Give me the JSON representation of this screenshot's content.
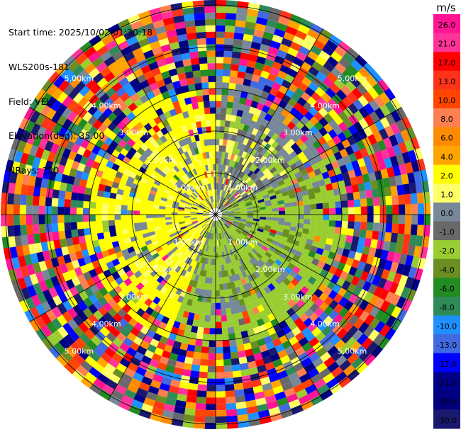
{
  "header": {
    "start_time": "Start time: 2025/10/02 01:30:18",
    "instrument": "WLS200s-181",
    "field": "Field: VEL",
    "elevation": "Elevation(deg): 35.00",
    "nrays": "NRays: 120"
  },
  "colorbar": {
    "unit": "m/s",
    "ticks": [
      "26.0",
      "21.0",
      "17.0",
      "13.0",
      "10.0",
      "8.0",
      "6.0",
      "4.0",
      "2.0",
      "1.0",
      "0.0",
      "-1.0",
      "-2.0",
      "-4.0",
      "-6.0",
      "-8.0",
      "-10.0",
      "-13.0",
      "-17.0",
      "-21.0",
      "-26.0",
      "-30.0"
    ],
    "colors": [
      "#ff1493",
      "#ff3399",
      "#ff0000",
      "#ff3319",
      "#ff4500",
      "#ff7f50",
      "#ff8c00",
      "#ffa500",
      "#ffff00",
      "#ffff66",
      "#778899",
      "#696969",
      "#9acd32",
      "#6b8e23",
      "#228b22",
      "#2e8b57",
      "#1e90ff",
      "#4169e1",
      "#0000ff",
      "#00008b",
      "#000080",
      "#191970"
    ]
  },
  "range_rings": {
    "labels": [
      "1.00km",
      "2.00km",
      "3.00km",
      "4.00km",
      "5.00km"
    ]
  }
}
